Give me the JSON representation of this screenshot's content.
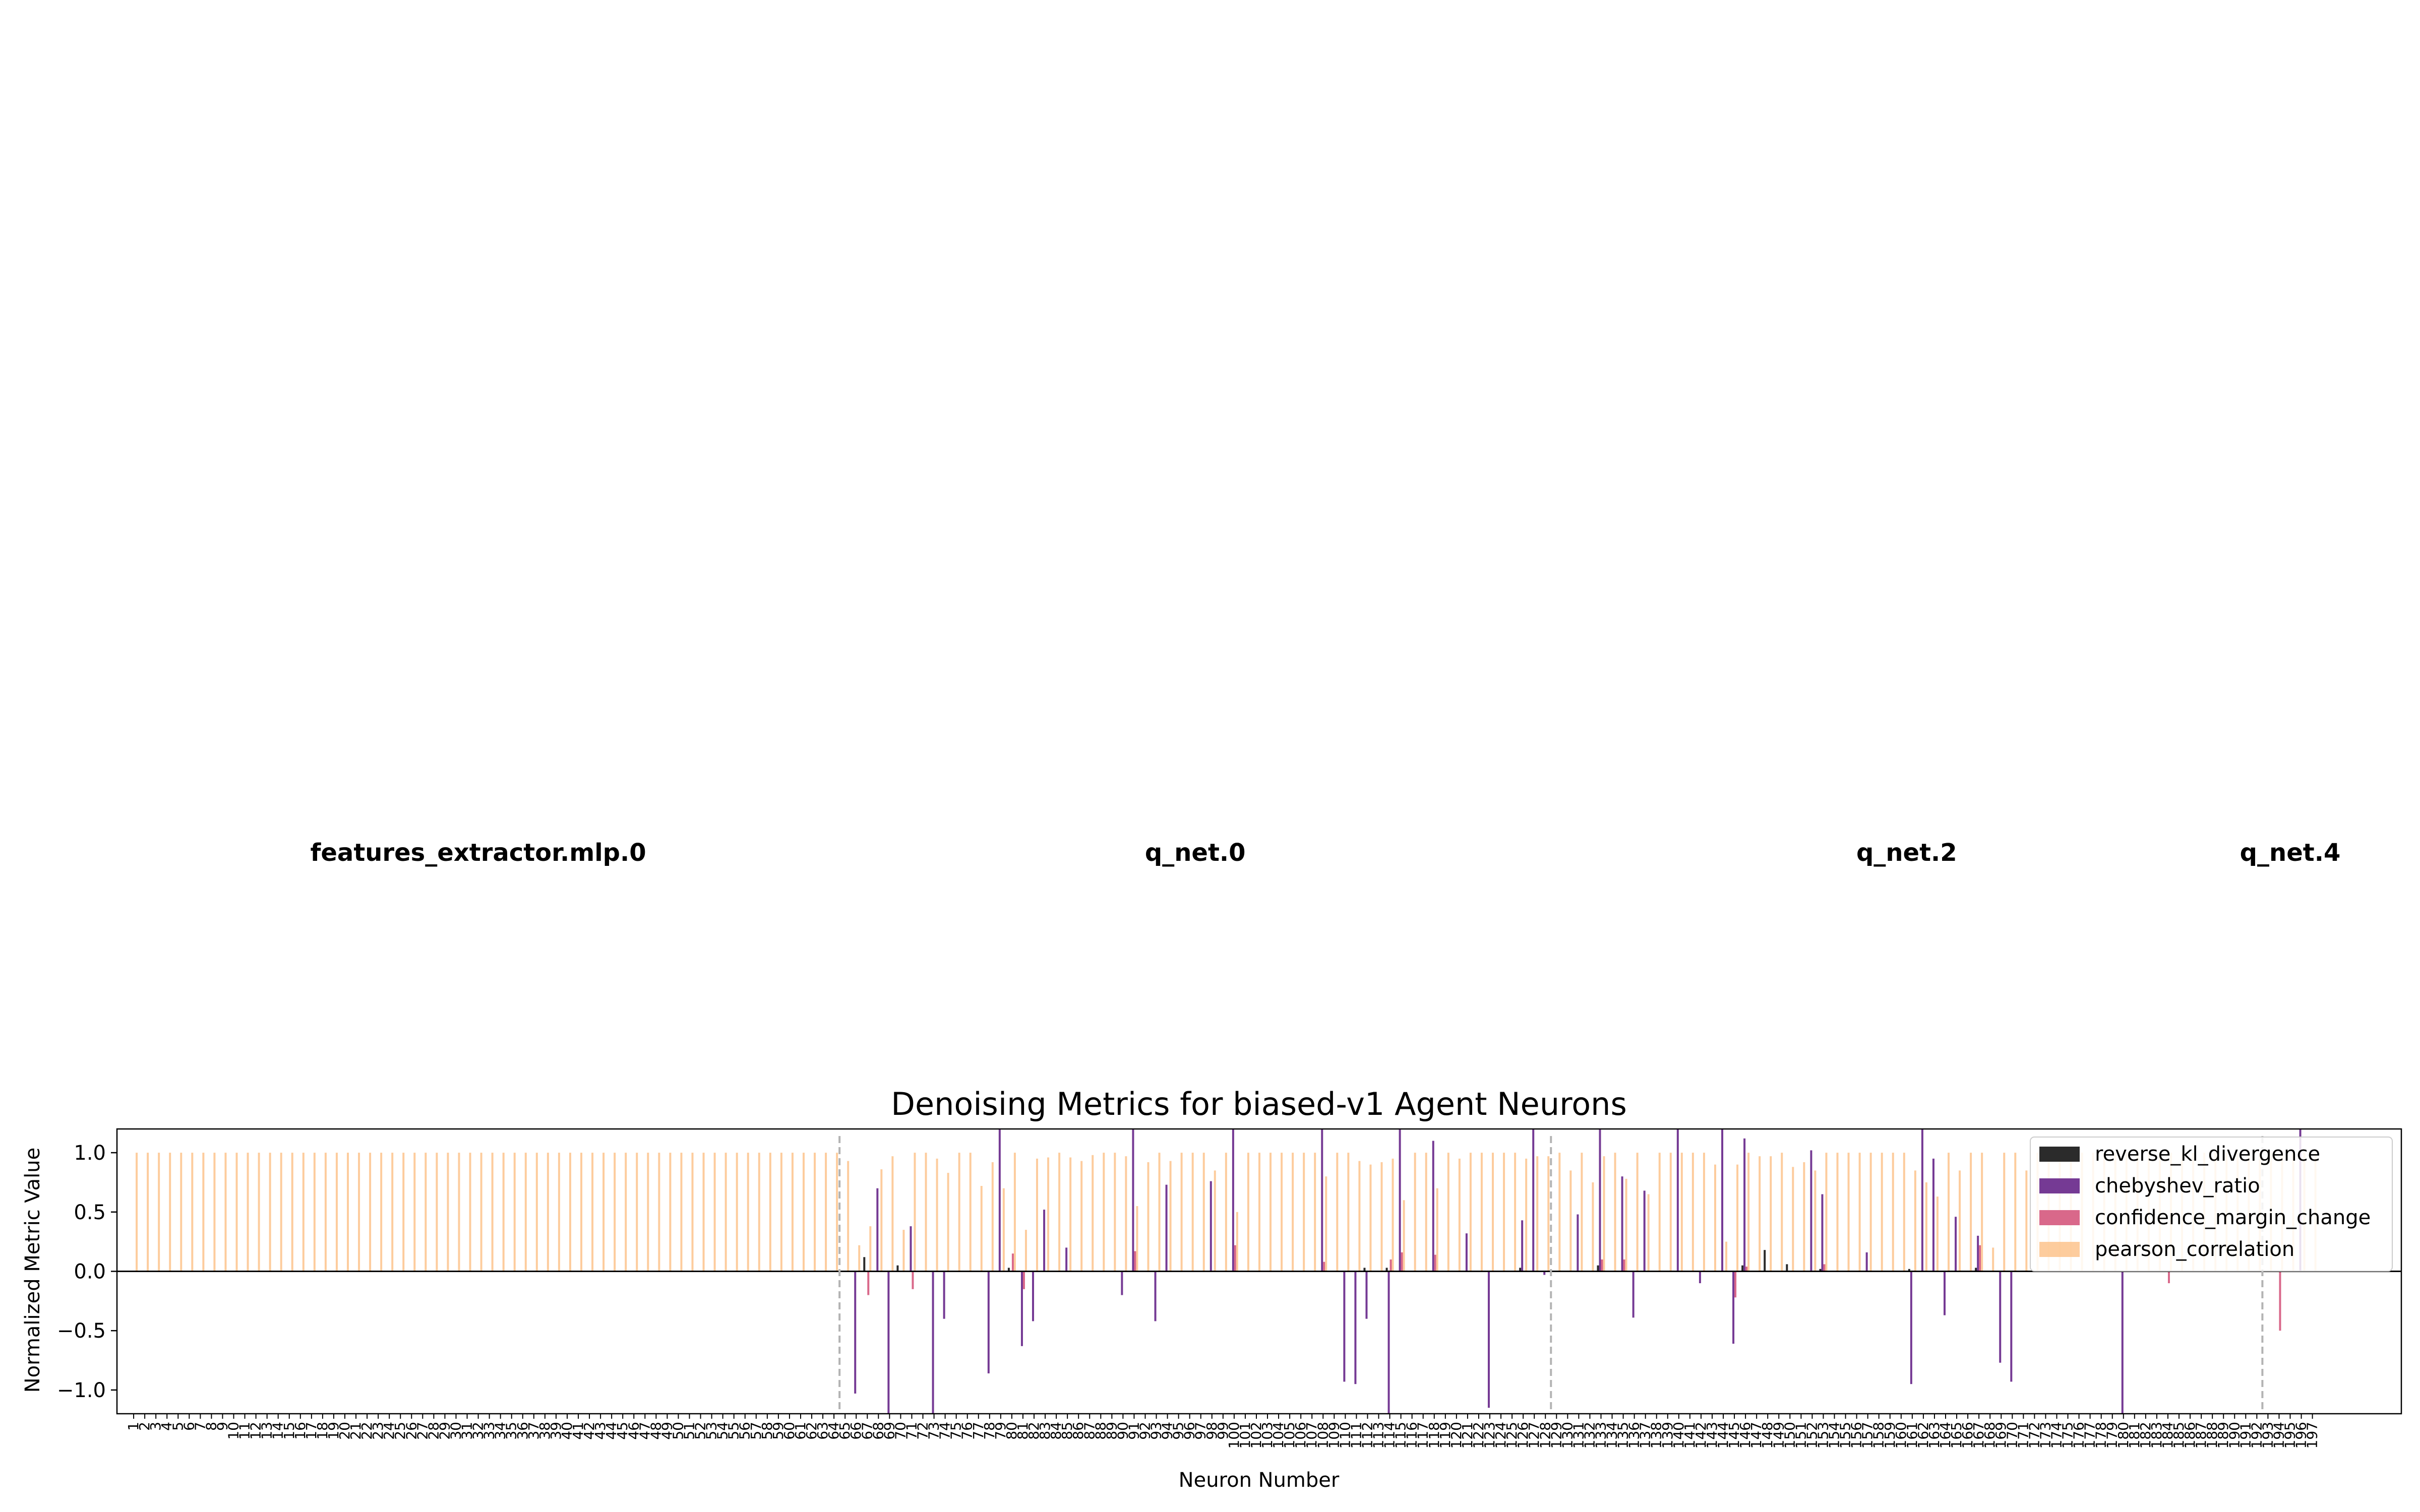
{
  "chart_data": {
    "type": "bar",
    "title": "Denoising Metrics for biased-v1 Agent Neurons",
    "xlabel": "Neuron Number",
    "ylabel": "Normalized Metric Value",
    "ylim": [
      -1.2,
      1.2
    ],
    "yticks": [
      1.0,
      0.5,
      0.0,
      -0.5,
      -1.0
    ],
    "yticks_text": [
      "1.0",
      "0.5",
      "0.0",
      "−0.5",
      "−1.0"
    ],
    "xlim": [
      -0.5,
      205
    ],
    "grid": false,
    "legend_position": "upper right",
    "layer_boundaries": [
      64.5,
      128.5,
      192.5
    ],
    "layer_labels": [
      {
        "name": "features_extractor.mlp.0",
        "center": 32
      },
      {
        "name": "q_net.0",
        "center": 96.5
      },
      {
        "name": "q_net.2",
        "center": 160.5
      },
      {
        "name": "q_net.4",
        "center": 195
      }
    ],
    "series": [
      {
        "name": "reverse_kl_divergence",
        "color": "#2b2b2b",
        "values": {
          "67": 0.12,
          "70": 0.05,
          "80": 0.03,
          "112": 0.03,
          "114": 0.03,
          "126": 0.03,
          "133": 0.05,
          "146": 0.05,
          "148": 0.18,
          "150": 0.06,
          "153": 0.02,
          "161": 0.02,
          "167": 0.03
        }
      },
      {
        "name": "chebyshev_ratio",
        "color": "#753a94",
        "values": {
          "66": -1.03,
          "68": 0.7,
          "69": -1.2,
          "71": 0.38,
          "73": -1.2,
          "74": -0.4,
          "78": -0.86,
          "79": 1.2,
          "81": -0.63,
          "82": -0.42,
          "83": 0.52,
          "85": 0.2,
          "90": -0.2,
          "91": 1.2,
          "93": -0.42,
          "94": 0.73,
          "98": 0.76,
          "100": 1.2,
          "108": 1.2,
          "110": -0.93,
          "111": -0.95,
          "112": -0.4,
          "114": -1.2,
          "115": 1.2,
          "118": 1.1,
          "121": 0.32,
          "123": -1.15,
          "126": 0.43,
          "127": 1.2,
          "128": -0.03,
          "131": 0.48,
          "133": 1.2,
          "135": 0.8,
          "136": -0.39,
          "137": 0.68,
          "140": 1.2,
          "142": -0.1,
          "144": 1.2,
          "145": -0.61,
          "146": 1.12,
          "152": 1.02,
          "153": 0.65,
          "157": 0.16,
          "161": -0.95,
          "162": 1.2,
          "163": 0.95,
          "164": -0.37,
          "165": 0.46,
          "167": 0.3,
          "169": -0.77,
          "170": -0.93,
          "180": -1.2,
          "196": 1.2
        }
      },
      {
        "name": "confidence_margin_change",
        "color": "#d9688a",
        "values": {
          "67": -0.2,
          "71": -0.15,
          "80": 0.15,
          "81": -0.15,
          "91": 0.17,
          "100": 0.22,
          "108": 0.08,
          "114": 0.1,
          "115": 0.16,
          "118": 0.14,
          "133": 0.1,
          "135": 0.1,
          "145": -0.22,
          "146": 0.04,
          "153": 0.06,
          "167": 0.22,
          "184": -0.1,
          "194": -0.5
        }
      },
      {
        "name": "pearson_correlation",
        "color": "#fdbf84",
        "values": {
          "1": 1.0,
          "2": 1.0,
          "3": 1.0,
          "4": 1.0,
          "5": 1.0,
          "6": 1.0,
          "7": 1.0,
          "8": 1.0,
          "9": 1.0,
          "10": 1.0,
          "11": 1.0,
          "12": 1.0,
          "13": 1.0,
          "14": 1.0,
          "15": 1.0,
          "16": 1.0,
          "17": 1.0,
          "18": 1.0,
          "19": 1.0,
          "20": 1.0,
          "21": 1.0,
          "22": 1.0,
          "23": 1.0,
          "24": 1.0,
          "25": 1.0,
          "26": 1.0,
          "27": 1.0,
          "28": 1.0,
          "29": 1.0,
          "30": 1.0,
          "31": 1.0,
          "32": 1.0,
          "33": 1.0,
          "34": 1.0,
          "35": 1.0,
          "36": 1.0,
          "37": 1.0,
          "38": 1.0,
          "39": 1.0,
          "40": 1.0,
          "41": 1.0,
          "42": 1.0,
          "43": 1.0,
          "44": 1.0,
          "45": 1.0,
          "46": 1.0,
          "47": 1.0,
          "48": 1.0,
          "49": 1.0,
          "50": 1.0,
          "51": 1.0,
          "52": 1.0,
          "53": 1.0,
          "54": 1.0,
          "55": 1.0,
          "56": 1.0,
          "57": 1.0,
          "58": 1.0,
          "59": 1.0,
          "60": 1.0,
          "61": 1.0,
          "62": 1.0,
          "63": 1.0,
          "64": 1.0,
          "65": 0.93,
          "66": 0.22,
          "67": 0.38,
          "68": 0.86,
          "69": 0.97,
          "70": 0.35,
          "71": 1.0,
          "72": 1.0,
          "73": 0.95,
          "74": 0.83,
          "75": 1.0,
          "76": 1.0,
          "77": 0.72,
          "78": 0.92,
          "79": 0.7,
          "80": 1.0,
          "81": 0.35,
          "82": 0.95,
          "83": 0.96,
          "84": 1.0,
          "85": 0.96,
          "86": 0.93,
          "87": 0.98,
          "88": 1.0,
          "89": 1.0,
          "90": 0.97,
          "91": 0.55,
          "92": 0.92,
          "93": 1.0,
          "94": 0.93,
          "95": 1.0,
          "96": 1.0,
          "97": 1.0,
          "98": 0.85,
          "99": 1.0,
          "100": 0.5,
          "101": 1.0,
          "102": 1.0,
          "103": 1.0,
          "104": 1.0,
          "105": 1.0,
          "106": 1.0,
          "107": 1.0,
          "108": 0.8,
          "109": 1.0,
          "110": 1.0,
          "111": 0.93,
          "112": 0.9,
          "113": 0.92,
          "114": 0.95,
          "115": 0.6,
          "116": 1.0,
          "117": 1.0,
          "118": 0.7,
          "119": 1.0,
          "120": 0.95,
          "121": 1.0,
          "122": 1.0,
          "123": 1.0,
          "124": 1.0,
          "125": 1.0,
          "126": 0.95,
          "127": 0.97,
          "128": 0.97,
          "129": 1.0,
          "130": 0.85,
          "131": 1.0,
          "132": 0.75,
          "133": 0.97,
          "134": 1.0,
          "135": 0.78,
          "136": 1.0,
          "137": 0.65,
          "138": 1.0,
          "139": 1.0,
          "140": 1.0,
          "141": 1.0,
          "142": 1.0,
          "143": 0.9,
          "144": 0.25,
          "145": 0.9,
          "146": 1.0,
          "147": 0.97,
          "148": 0.97,
          "149": 1.0,
          "150": 0.88,
          "151": 0.92,
          "152": 0.85,
          "153": 1.0,
          "154": 1.0,
          "155": 1.0,
          "156": 1.0,
          "157": 1.0,
          "158": 1.0,
          "159": 1.0,
          "160": 1.0,
          "161": 0.85,
          "162": 0.75,
          "163": 0.63,
          "164": 1.0,
          "165": 0.85,
          "166": 1.0,
          "167": 1.0,
          "168": 0.2,
          "169": 1.0,
          "170": 1.0,
          "171": 0.85,
          "172": 1.0,
          "173": 1.0,
          "174": 1.0,
          "175": 1.0,
          "176": 1.0,
          "177": 1.0,
          "178": 1.0,
          "179": 1.0,
          "180": 1.0,
          "181": 1.0,
          "182": 1.0,
          "183": 1.0,
          "184": 1.0,
          "185": 1.0,
          "186": 1.0,
          "187": 1.0,
          "188": 1.0,
          "189": 1.0,
          "190": 1.0,
          "191": 1.0,
          "192": 1.0,
          "193": 1.0,
          "194": 1.0,
          "195": 1.0,
          "196": 1.0,
          "197": 1.0
        }
      }
    ]
  }
}
